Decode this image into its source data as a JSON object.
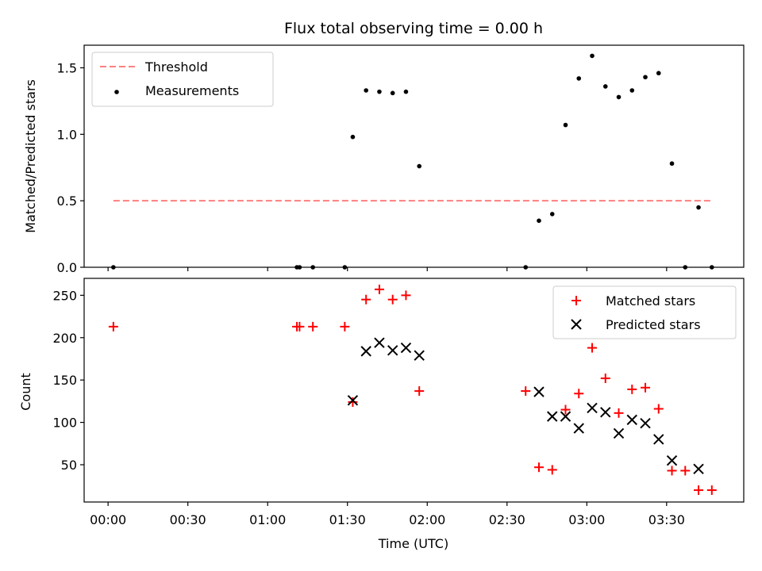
{
  "chart_data": [
    {
      "type": "scatter",
      "title": "Flux total observing time = 0.00 h",
      "xlabel": "",
      "ylabel": "Matched/Predicted stars",
      "ylim": [
        0,
        1.67
      ],
      "yticks": [
        0.0,
        0.5,
        1.0,
        1.5
      ],
      "ytick_labels": [
        "0.0",
        "0.5",
        "1.0",
        "1.5"
      ],
      "legend_position": "top-left",
      "threshold": {
        "name": "Threshold",
        "value": 0.5,
        "x_start": "00:02",
        "x_end": "03:47",
        "color": "#ff7f7f",
        "style": "dashed"
      },
      "series": [
        {
          "name": "Measurements",
          "color": "#000000",
          "marker": "dot",
          "points": [
            [
              "00:02",
              0.0
            ],
            [
              "01:11",
              0.0
            ],
            [
              "01:12",
              0.0
            ],
            [
              "01:17",
              0.0
            ],
            [
              "01:29",
              0.0
            ],
            [
              "01:32",
              0.98
            ],
            [
              "01:37",
              1.33
            ],
            [
              "01:42",
              1.32
            ],
            [
              "01:47",
              1.31
            ],
            [
              "01:52",
              1.32
            ],
            [
              "01:57",
              0.76
            ],
            [
              "02:37",
              0.0
            ],
            [
              "02:42",
              0.35
            ],
            [
              "02:47",
              0.4
            ],
            [
              "02:52",
              1.07
            ],
            [
              "02:57",
              1.42
            ],
            [
              "03:02",
              1.59
            ],
            [
              "03:07",
              1.36
            ],
            [
              "03:12",
              1.28
            ],
            [
              "03:17",
              1.33
            ],
            [
              "03:22",
              1.43
            ],
            [
              "03:27",
              1.46
            ],
            [
              "03:32",
              0.78
            ],
            [
              "03:37",
              0.0
            ],
            [
              "03:42",
              0.45
            ],
            [
              "03:47",
              0.0
            ]
          ]
        }
      ]
    },
    {
      "type": "scatter",
      "title": "",
      "xlabel": "Time (UTC)",
      "ylabel": "Count",
      "ylim": [
        6,
        270
      ],
      "yticks": [
        50,
        100,
        150,
        200,
        250
      ],
      "ytick_labels": [
        "50",
        "100",
        "150",
        "200",
        "250"
      ],
      "x_axis": {
        "range": [
          "23:51",
          "03:59"
        ],
        "ticks": [
          "00:00",
          "00:30",
          "01:00",
          "01:30",
          "02:00",
          "02:30",
          "03:00",
          "03:30"
        ],
        "tick_labels": [
          "00:00",
          "00:30",
          "01:00",
          "01:30",
          "02:00",
          "02:30",
          "03:00",
          "03:30"
        ]
      },
      "legend_position": "top-right",
      "series": [
        {
          "name": "Matched stars",
          "color": "#ff0000",
          "marker": "plus",
          "points": [
            [
              "00:02",
              213
            ],
            [
              "01:11",
              213
            ],
            [
              "01:12",
              213
            ],
            [
              "01:17",
              213
            ],
            [
              "01:29",
              213
            ],
            [
              "01:32",
              124
            ],
            [
              "01:37",
              245
            ],
            [
              "01:42",
              257
            ],
            [
              "01:47",
              245
            ],
            [
              "01:52",
              250
            ],
            [
              "01:57",
              137
            ],
            [
              "02:37",
              137
            ],
            [
              "02:42",
              47
            ],
            [
              "02:47",
              44
            ],
            [
              "02:52",
              115
            ],
            [
              "02:57",
              134
            ],
            [
              "03:02",
              188
            ],
            [
              "03:07",
              152
            ],
            [
              "03:12",
              111
            ],
            [
              "03:17",
              139
            ],
            [
              "03:22",
              141
            ],
            [
              "03:27",
              116
            ],
            [
              "03:32",
              43
            ],
            [
              "03:37",
              43
            ],
            [
              "03:42",
              20
            ],
            [
              "03:47",
              20
            ]
          ]
        },
        {
          "name": "Predicted stars",
          "color": "#000000",
          "marker": "x",
          "points": [
            [
              "01:32",
              126
            ],
            [
              "01:37",
              184
            ],
            [
              "01:42",
              194
            ],
            [
              "01:47",
              185
            ],
            [
              "01:52",
              188
            ],
            [
              "01:57",
              179
            ],
            [
              "02:42",
              136
            ],
            [
              "02:47",
              107
            ],
            [
              "02:52",
              107
            ],
            [
              "02:57",
              93
            ],
            [
              "03:02",
              117
            ],
            [
              "03:07",
              112
            ],
            [
              "03:12",
              87
            ],
            [
              "03:17",
              103
            ],
            [
              "03:22",
              99
            ],
            [
              "03:27",
              80
            ],
            [
              "03:32",
              55
            ],
            [
              "03:42",
              45
            ]
          ]
        }
      ]
    }
  ]
}
